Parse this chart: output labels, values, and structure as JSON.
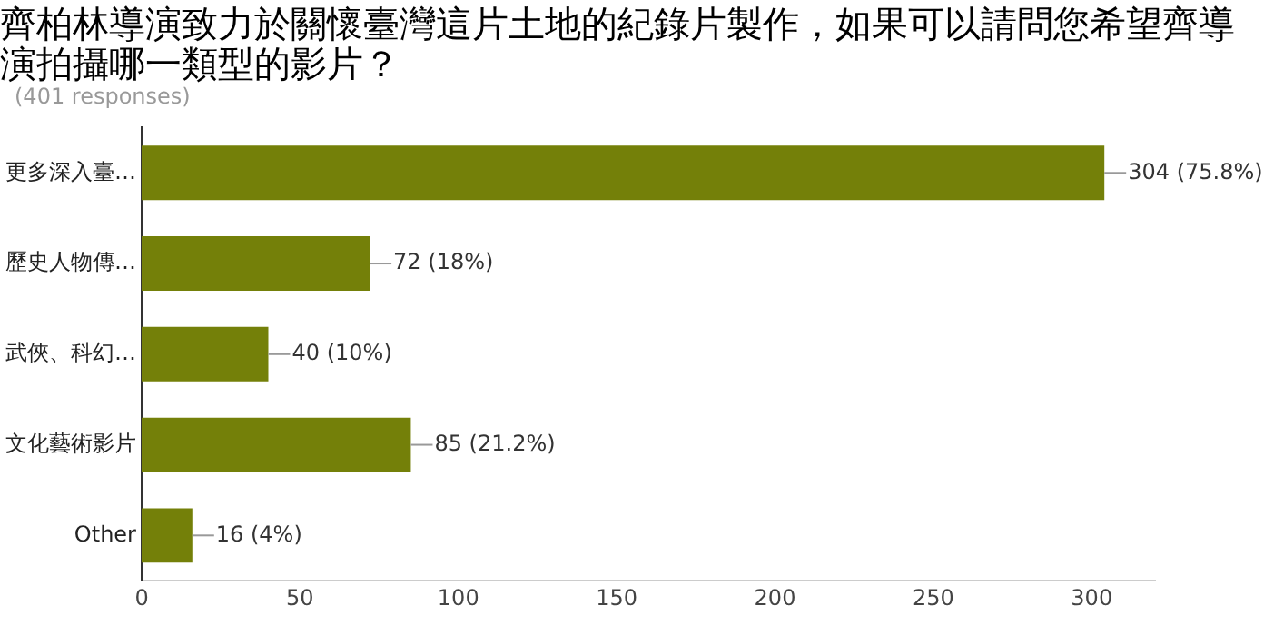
{
  "chart_data": {
    "type": "bar",
    "orientation": "horizontal",
    "title": "齊柏林導演致力於關懷臺灣這片土地的紀錄片製作，如果可以請問您希望齊導演拍攝哪一類型的影片？",
    "subtitle": "(401 responses)",
    "categories": [
      "更多深入臺…",
      "歷史人物傳…",
      "武俠、科幻…",
      "文化藝術影片",
      "Other"
    ],
    "values": [
      304,
      72,
      40,
      85,
      16
    ],
    "value_labels": [
      "304 (75.8%)",
      "72 (18%)",
      "40 (10%)",
      "85 (21.2%)",
      "16 (4%)"
    ],
    "color": "#748009",
    "xlim": [
      0,
      320
    ],
    "xticks": [
      0,
      50,
      100,
      150,
      200,
      250,
      300
    ],
    "grid": false,
    "legend": false
  }
}
